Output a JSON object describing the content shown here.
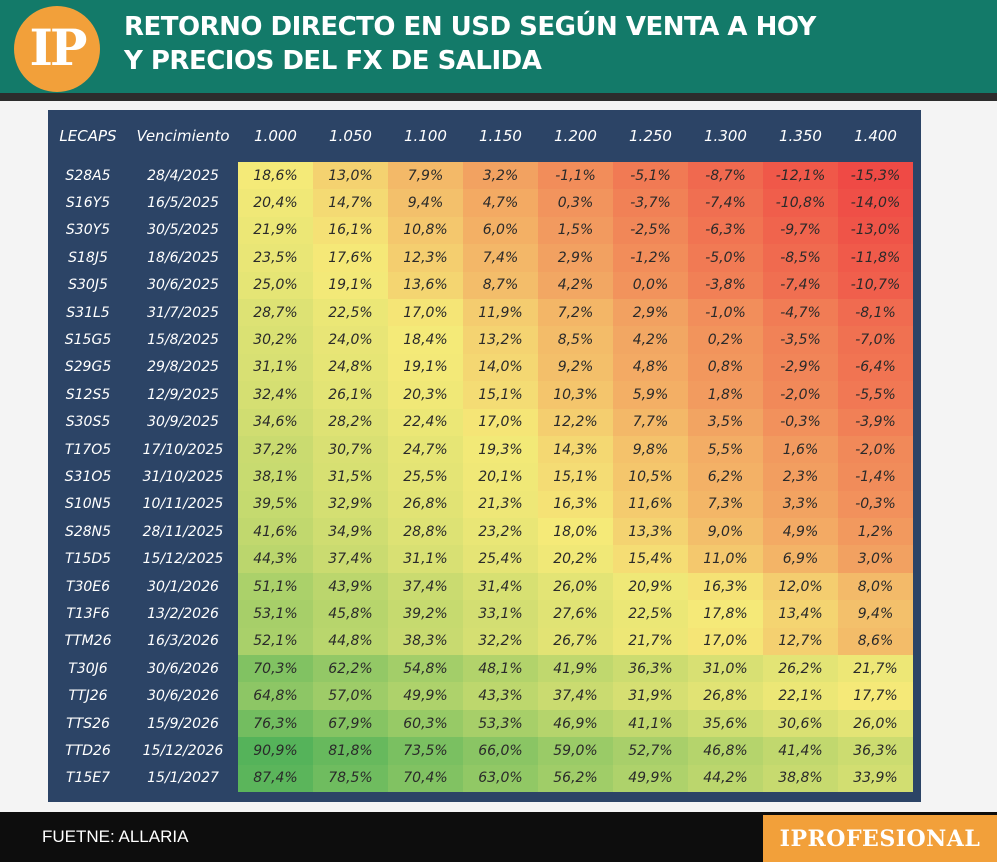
{
  "header": {
    "logo_text": "IP",
    "title_line1": "RETORNO DIRECTO EN USD SEGÚN VENTA A HOY",
    "title_line2": "Y PRECIOS DEL FX DE SALIDA"
  },
  "footer": {
    "source": "FUETNE: ALLARIA",
    "brand": "IPROFESIONAL"
  },
  "colors": {
    "header_bg": "#137a69",
    "table_bg": "#2c4466",
    "brand_orange": "#f2a03a",
    "heat_low": "#ef4a45",
    "heat_mid": "#f5ea78",
    "heat_high": "#55b35a"
  },
  "chart_data": {
    "type": "heatmap",
    "title": "RETORNO DIRECTO EN USD SEGÚN VENTA A HOY Y PRECIOS DEL FX DE SALIDA",
    "row_header": "LECAPS",
    "date_header": "Vencimiento",
    "columns": [
      "1.000",
      "1.050",
      "1.100",
      "1.150",
      "1.200",
      "1.250",
      "1.300",
      "1.350",
      "1.400"
    ],
    "rows": [
      {
        "ticker": "S28A5",
        "date": "28/4/2025",
        "values": [
          "18,6%",
          "13,0%",
          "7,9%",
          "3,2%",
          "-1,1%",
          "-5,1%",
          "-8,7%",
          "-12,1%",
          "-15,3%"
        ]
      },
      {
        "ticker": "S16Y5",
        "date": "16/5/2025",
        "values": [
          "20,4%",
          "14,7%",
          "9,4%",
          "4,7%",
          "0,3%",
          "-3,7%",
          "-7,4%",
          "-10,8%",
          "-14,0%"
        ]
      },
      {
        "ticker": "S30Y5",
        "date": "30/5/2025",
        "values": [
          "21,9%",
          "16,1%",
          "10,8%",
          "6,0%",
          "1,5%",
          "-2,5%",
          "-6,3%",
          "-9,7%",
          "-13,0%"
        ]
      },
      {
        "ticker": "S18J5",
        "date": "18/6/2025",
        "values": [
          "23,5%",
          "17,6%",
          "12,3%",
          "7,4%",
          "2,9%",
          "-1,2%",
          "-5,0%",
          "-8,5%",
          "-11,8%"
        ]
      },
      {
        "ticker": "S30J5",
        "date": "30/6/2025",
        "values": [
          "25,0%",
          "19,1%",
          "13,6%",
          "8,7%",
          "4,2%",
          "0,0%",
          "-3,8%",
          "-7,4%",
          "-10,7%"
        ]
      },
      {
        "ticker": "S31L5",
        "date": "31/7/2025",
        "values": [
          "28,7%",
          "22,5%",
          "17,0%",
          "11,9%",
          "7,2%",
          "2,9%",
          "-1,0%",
          "-4,7%",
          "-8,1%"
        ]
      },
      {
        "ticker": "S15G5",
        "date": "15/8/2025",
        "values": [
          "30,2%",
          "24,0%",
          "18,4%",
          "13,2%",
          "8,5%",
          "4,2%",
          "0,2%",
          "-3,5%",
          "-7,0%"
        ]
      },
      {
        "ticker": "S29G5",
        "date": "29/8/2025",
        "values": [
          "31,1%",
          "24,8%",
          "19,1%",
          "14,0%",
          "9,2%",
          "4,8%",
          "0,8%",
          "-2,9%",
          "-6,4%"
        ]
      },
      {
        "ticker": "S12S5",
        "date": "12/9/2025",
        "values": [
          "32,4%",
          "26,1%",
          "20,3%",
          "15,1%",
          "10,3%",
          "5,9%",
          "1,8%",
          "-2,0%",
          "-5,5%"
        ]
      },
      {
        "ticker": "S30S5",
        "date": "30/9/2025",
        "values": [
          "34,6%",
          "28,2%",
          "22,4%",
          "17,0%",
          "12,2%",
          "7,7%",
          "3,5%",
          "-0,3%",
          "-3,9%"
        ]
      },
      {
        "ticker": "T17O5",
        "date": "17/10/2025",
        "values": [
          "37,2%",
          "30,7%",
          "24,7%",
          "19,3%",
          "14,3%",
          "9,8%",
          "5,5%",
          "1,6%",
          "-2,0%"
        ]
      },
      {
        "ticker": "S31O5",
        "date": "31/10/2025",
        "values": [
          "38,1%",
          "31,5%",
          "25,5%",
          "20,1%",
          "15,1%",
          "10,5%",
          "6,2%",
          "2,3%",
          "-1,4%"
        ]
      },
      {
        "ticker": "S10N5",
        "date": "10/11/2025",
        "values": [
          "39,5%",
          "32,9%",
          "26,8%",
          "21,3%",
          "16,3%",
          "11,6%",
          "7,3%",
          "3,3%",
          "-0,3%"
        ]
      },
      {
        "ticker": "S28N5",
        "date": "28/11/2025",
        "values": [
          "41,6%",
          "34,9%",
          "28,8%",
          "23,2%",
          "18,0%",
          "13,3%",
          "9,0%",
          "4,9%",
          "1,2%"
        ]
      },
      {
        "ticker": "T15D5",
        "date": "15/12/2025",
        "values": [
          "44,3%",
          "37,4%",
          "31,1%",
          "25,4%",
          "20,2%",
          "15,4%",
          "11,0%",
          "6,9%",
          "3,0%"
        ]
      },
      {
        "ticker": "T30E6",
        "date": "30/1/2026",
        "values": [
          "51,1%",
          "43,9%",
          "37,4%",
          "31,4%",
          "26,0%",
          "20,9%",
          "16,3%",
          "12,0%",
          "8,0%"
        ]
      },
      {
        "ticker": "T13F6",
        "date": "13/2/2026",
        "values": [
          "53,1%",
          "45,8%",
          "39,2%",
          "33,1%",
          "27,6%",
          "22,5%",
          "17,8%",
          "13,4%",
          "9,4%"
        ]
      },
      {
        "ticker": "TTM26",
        "date": "16/3/2026",
        "values": [
          "52,1%",
          "44,8%",
          "38,3%",
          "32,2%",
          "26,7%",
          "21,7%",
          "17,0%",
          "12,7%",
          "8,6%"
        ]
      },
      {
        "ticker": "T30J6",
        "date": "30/6/2026",
        "values": [
          "70,3%",
          "62,2%",
          "54,8%",
          "48,1%",
          "41,9%",
          "36,3%",
          "31,0%",
          "26,2%",
          "21,7%"
        ]
      },
      {
        "ticker": "TTJ26",
        "date": "30/6/2026",
        "values": [
          "64,8%",
          "57,0%",
          "49,9%",
          "43,3%",
          "37,4%",
          "31,9%",
          "26,8%",
          "22,1%",
          "17,7%"
        ]
      },
      {
        "ticker": "TTS26",
        "date": "15/9/2026",
        "values": [
          "76,3%",
          "67,9%",
          "60,3%",
          "53,3%",
          "46,9%",
          "41,1%",
          "35,6%",
          "30,6%",
          "26,0%"
        ]
      },
      {
        "ticker": "TTD26",
        "date": "15/12/2026",
        "values": [
          "90,9%",
          "81,8%",
          "73,5%",
          "66,0%",
          "59,0%",
          "52,7%",
          "46,8%",
          "41,4%",
          "36,3%"
        ]
      },
      {
        "ticker": "T15E7",
        "date": "15/1/2027",
        "values": [
          "87,4%",
          "78,5%",
          "70,4%",
          "63,0%",
          "56,2%",
          "49,9%",
          "44,2%",
          "38,8%",
          "33,9%"
        ]
      }
    ]
  }
}
